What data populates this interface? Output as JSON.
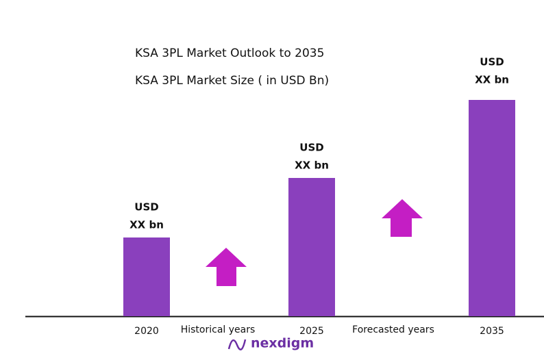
{
  "chart_data": {
    "type": "bar",
    "title": "KSA 3PL Market Outlook to 2035",
    "subtitle": "KSA 3PL Market Size  ( in USD Bn)",
    "categories": [
      "2020",
      "2025",
      "2035"
    ],
    "values": [
      115,
      202,
      316
    ],
    "value_labels": [
      [
        "USD",
        "XX bn"
      ],
      [
        "USD",
        "XX bn"
      ],
      [
        "USD",
        "XX bn"
      ]
    ],
    "color": "#8a40bd",
    "ylim": [
      0,
      350
    ],
    "annotations": [
      "Historical years",
      "Forecasted years"
    ],
    "logo": "nexdigm"
  }
}
